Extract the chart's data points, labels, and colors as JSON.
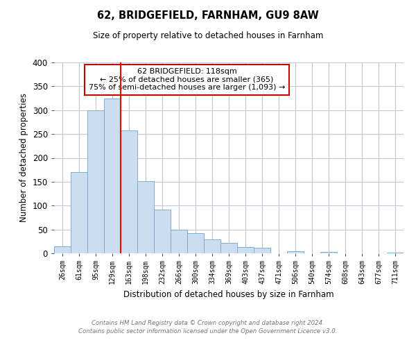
{
  "title": "62, BRIDGEFIELD, FARNHAM, GU9 8AW",
  "subtitle": "Size of property relative to detached houses in Farnham",
  "xlabel": "Distribution of detached houses by size in Farnham",
  "ylabel": "Number of detached properties",
  "bar_labels": [
    "26sqm",
    "61sqm",
    "95sqm",
    "129sqm",
    "163sqm",
    "198sqm",
    "232sqm",
    "266sqm",
    "300sqm",
    "334sqm",
    "369sqm",
    "403sqm",
    "437sqm",
    "471sqm",
    "506sqm",
    "540sqm",
    "574sqm",
    "608sqm",
    "643sqm",
    "677sqm",
    "711sqm"
  ],
  "bar_values": [
    15,
    170,
    300,
    325,
    258,
    152,
    92,
    50,
    42,
    29,
    22,
    13,
    11,
    0,
    5,
    0,
    3,
    0,
    0,
    0,
    2
  ],
  "bar_color": "#ccddf0",
  "bar_edge_color": "#7aafd4",
  "vline_x": 3.5,
  "vline_color": "red",
  "ylim": [
    0,
    400
  ],
  "yticks": [
    0,
    50,
    100,
    150,
    200,
    250,
    300,
    350,
    400
  ],
  "annotation_title": "62 BRIDGEFIELD: 118sqm",
  "annotation_line1": "← 25% of detached houses are smaller (365)",
  "annotation_line2": "75% of semi-detached houses are larger (1,093) →",
  "annotation_box_color": "#ffffff",
  "annotation_box_edge_color": "#cc0000",
  "footer_line1": "Contains HM Land Registry data © Crown copyright and database right 2024.",
  "footer_line2": "Contains public sector information licensed under the Open Government Licence v3.0.",
  "background_color": "#ffffff",
  "grid_color": "#c0c8d8"
}
